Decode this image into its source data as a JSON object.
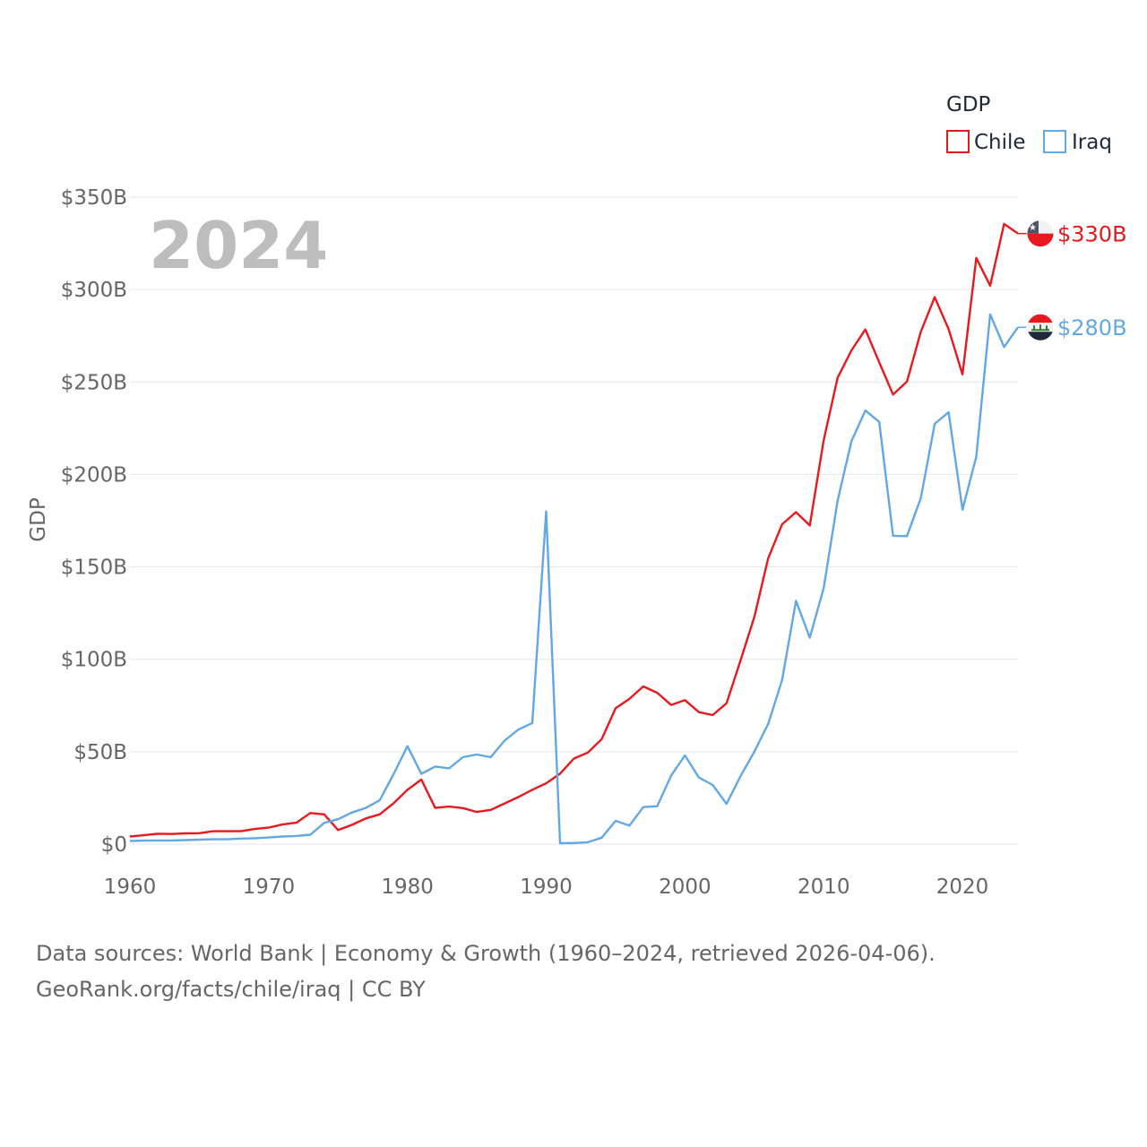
{
  "chart_data": {
    "type": "line",
    "title": "",
    "year_label": "2024",
    "xlabel": "",
    "ylabel": "GDP",
    "xlim": [
      1960,
      2024
    ],
    "ylim": [
      0,
      350
    ],
    "x_ticks": [
      1960,
      1970,
      1980,
      1990,
      2000,
      2010,
      2020
    ],
    "x_tick_labels": [
      "1960",
      "1970",
      "1980",
      "1990",
      "2000",
      "2010",
      "2020"
    ],
    "y_ticks": [
      0,
      50,
      100,
      150,
      200,
      250,
      300,
      350
    ],
    "y_tick_labels": [
      "$0",
      "$50B",
      "$100B",
      "$150B",
      "$200B",
      "$250B",
      "$300B",
      "$350B"
    ],
    "legend": {
      "title": "GDP",
      "position": "top-right"
    },
    "grid": true,
    "x": [
      1960,
      1961,
      1962,
      1963,
      1964,
      1965,
      1966,
      1967,
      1968,
      1969,
      1970,
      1971,
      1972,
      1973,
      1974,
      1975,
      1976,
      1977,
      1978,
      1979,
      1980,
      1981,
      1982,
      1983,
      1984,
      1985,
      1986,
      1987,
      1988,
      1989,
      1990,
      1991,
      1992,
      1993,
      1994,
      1995,
      1996,
      1997,
      1998,
      1999,
      2000,
      2001,
      2002,
      2003,
      2004,
      2005,
      2006,
      2007,
      2008,
      2009,
      2010,
      2011,
      2012,
      2013,
      2014,
      2015,
      2016,
      2017,
      2018,
      2019,
      2020,
      2021,
      2022,
      2023,
      2024
    ],
    "series": [
      {
        "name": "Chile",
        "color": "#e8191e",
        "end_label": "$330B",
        "flag": "chile-flag-icon",
        "values": [
          4.1,
          4.8,
          5.6,
          5.5,
          5.8,
          5.9,
          7.0,
          7.0,
          7.0,
          8.2,
          8.9,
          10.6,
          11.6,
          16.8,
          16.1,
          7.6,
          10.4,
          13.9,
          16.1,
          22.1,
          29.4,
          34.9,
          19.6,
          20.3,
          19.5,
          17.4,
          18.5,
          22.0,
          25.5,
          29.4,
          32.9,
          38.1,
          46.3,
          49.5,
          56.8,
          73.5,
          78.6,
          85.3,
          81.9,
          75.3,
          77.9,
          71.4,
          69.8,
          76.2,
          99.2,
          122.9,
          154.7,
          173.0,
          179.6,
          172.4,
          218.5,
          252.2,
          267.1,
          278.4,
          260.6,
          243.2,
          250.2,
          277.2,
          295.9,
          278.6,
          254.1,
          317.1,
          302.1,
          335.5,
          330.3
        ]
      },
      {
        "name": "Iraq",
        "color": "#62a8e5",
        "end_label": "$280B",
        "flag": "iraq-flag-icon",
        "values": [
          1.7,
          1.9,
          2.0,
          2.0,
          2.2,
          2.4,
          2.6,
          2.6,
          3.0,
          3.2,
          3.6,
          4.1,
          4.4,
          5.1,
          11.5,
          13.5,
          17.1,
          19.6,
          23.7,
          37.8,
          53.0,
          38.0,
          42.0,
          41.0,
          47.0,
          48.5,
          47.0,
          56.0,
          62.0,
          65.5,
          180.0,
          0.5,
          0.6,
          1.0,
          3.5,
          12.6,
          10.0,
          20.0,
          20.5,
          37.0,
          48.0,
          36.0,
          32.0,
          21.8,
          36.7,
          50.0,
          65.1,
          88.8,
          131.6,
          111.7,
          138.5,
          185.7,
          218.0,
          234.6,
          228.4,
          166.8,
          166.6,
          187.2,
          227.4,
          233.6,
          180.9,
          209.6,
          286.6,
          268.9,
          279.6
        ]
      }
    ]
  },
  "footer": {
    "sources": "Data sources: World Bank | Economy & Growth (1960–2024, retrieved 2026-04-06).",
    "credit": "GeoRank.org/facts/chile/iraq | CC BY"
  }
}
